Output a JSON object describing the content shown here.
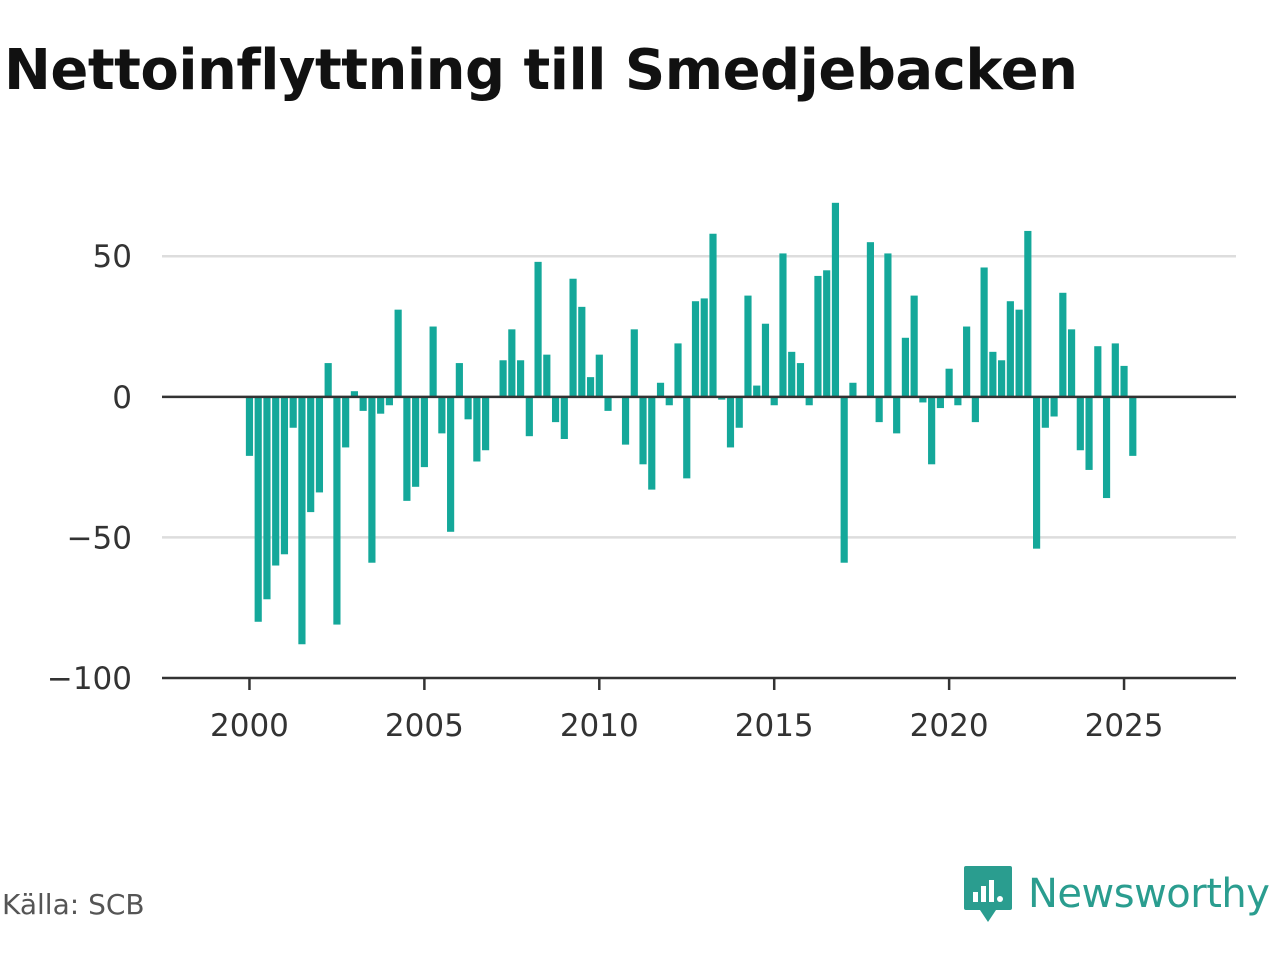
{
  "title": "Nettoinflyttning till Smedjebacken",
  "source": "Källa: SCB",
  "brand": {
    "name": "Newsworthy",
    "color": "#2a9d8f",
    "icon": "newsworthy-logo-icon"
  },
  "colors": {
    "bar": "#14a89a",
    "grid": "#dddddd",
    "zero_line": "#333333",
    "axis": "#333333"
  },
  "chart_data": {
    "type": "bar",
    "title": "Nettoinflyttning till Smedjebacken",
    "xlabel": "",
    "ylabel": "",
    "xlim": [
      1997.5,
      2028.2
    ],
    "ylim": [
      -100,
      70
    ],
    "x_ticks": [
      2000,
      2005,
      2010,
      2015,
      2020,
      2025
    ],
    "x_tick_labels": [
      "2000",
      "2005",
      "2010",
      "2015",
      "2020",
      "2025"
    ],
    "y_ticks": [
      50,
      0,
      -50,
      -100
    ],
    "y_tick_labels": [
      "50",
      "0",
      "−50",
      "−100"
    ],
    "grid": "horizontal",
    "x_start": 2000,
    "x_step": 0.25,
    "values": [
      -21,
      -80,
      -72,
      -60,
      -56,
      -11,
      -88,
      -41,
      -34,
      12,
      -81,
      -18,
      2,
      -5,
      -59,
      -6,
      -3,
      31,
      -37,
      -32,
      -25,
      25,
      -13,
      -48,
      12,
      -8,
      -23,
      -19,
      0,
      13,
      24,
      13,
      -14,
      48,
      15,
      -9,
      -15,
      42,
      32,
      7,
      15,
      -5,
      0,
      -17,
      24,
      -24,
      -33,
      5,
      -3,
      19,
      -29,
      34,
      35,
      58,
      -1,
      -18,
      -11,
      36,
      4,
      26,
      -3,
      51,
      16,
      12,
      -3,
      43,
      45,
      69,
      -59,
      5,
      0,
      55,
      -9,
      51,
      -13,
      21,
      36,
      -2,
      -24,
      -4,
      10,
      -3,
      25,
      -9,
      46,
      16,
      13,
      34,
      31,
      59,
      -54,
      -11,
      -7,
      37,
      24,
      -19,
      -26,
      18,
      -36,
      19,
      11,
      -21
    ]
  }
}
